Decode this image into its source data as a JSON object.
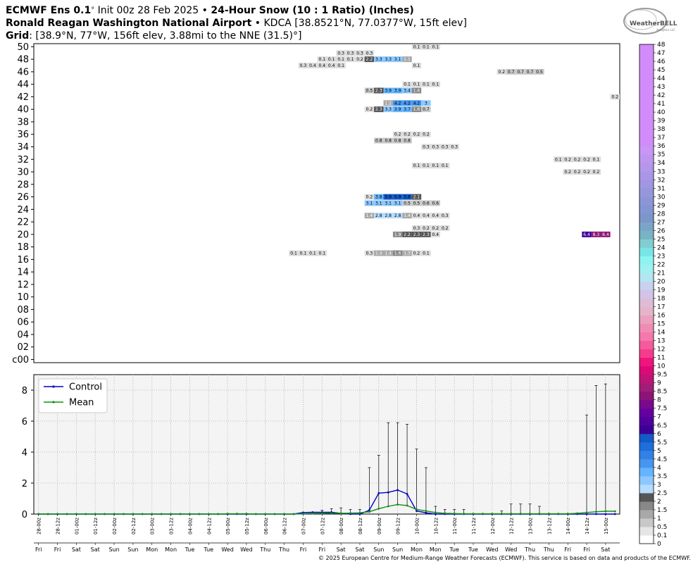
{
  "header": {
    "line1_model": "ECMWF Ens 0.1",
    "line1_deg": "°",
    "line1_init": "Init 00z 28 Feb 2025",
    "line1_sep": "•",
    "line1_product": "24-Hour Snow (10 : 1 Ratio) (Inches)",
    "line2_station": "Ronald Reagan Washington National Airport",
    "line2_sep": "•",
    "line2_code": "KDCA [38.8521°N, 77.0377°W, 15ft elev]",
    "line3_label": "Grid",
    "line3_value": ": [38.9°N, 77°W, 156ft elev, 3.88mi to the NNE (31.5)°]"
  },
  "logo": {
    "text": "WeatherBELL",
    "subtext": "Analytics LLC"
  },
  "credit": "© 2025 European Centre for Medium-Range Weather Forecasts (ECMWF). This service is based on data and products of the ECMWF.",
  "chart_data": [
    {
      "type": "heatmap",
      "title": "24-Hour Snow (10 : 1 Ratio) (Inches)",
      "y_members": [
        "c00",
        "02",
        "04",
        "06",
        "08",
        "10",
        "12",
        "14",
        "16",
        "18",
        "20",
        "22",
        "24",
        "26",
        "28",
        "30",
        "32",
        "34",
        "36",
        "38",
        "40",
        "42",
        "44",
        "46",
        "48",
        "50"
      ],
      "x_times": [
        "28-00z",
        "28-12z",
        "01-00z",
        "01-12z",
        "02-00z",
        "02-12z",
        "03-00z",
        "03-12z",
        "04-00z",
        "04-12z",
        "05-00z",
        "05-12z",
        "06-00z",
        "06-12z",
        "07-00z",
        "07-12z",
        "08-00z",
        "08-12z",
        "09-00z",
        "09-12z",
        "10-00z",
        "10-12z",
        "11-00z",
        "11-12z",
        "12-00z",
        "12-12z",
        "13-00z",
        "13-12z",
        "14-00z",
        "14-12z",
        "15-00z"
      ],
      "x_days": [
        "Fri",
        "Fri",
        "Sat",
        "Sat",
        "Sun",
        "Sun",
        "Mon",
        "Mon",
        "Tue",
        "Tue",
        "Wed",
        "Wed",
        "Thu",
        "Thu",
        "Fri",
        "Fri",
        "Sat",
        "Sat",
        "Sun",
        "Sun",
        "Mon",
        "Mon",
        "Tue",
        "Tue",
        "Wed",
        "Wed",
        "Thu",
        "Thu",
        "Fri",
        "Fri",
        "Sat"
      ],
      "cells": [
        {
          "member": 50,
          "start": 40.0,
          "values": [
            0.1,
            0.1,
            0.1
          ]
        },
        {
          "member": 49,
          "start": 32.0,
          "values": [
            0.3,
            0.3,
            0.3,
            0.3
          ]
        },
        {
          "member": 48,
          "start": 30.0,
          "values": [
            0.1,
            0.1,
            0.1,
            0.1,
            0.2,
            2.2,
            3.3,
            3.3,
            3.1,
            1.1
          ]
        },
        {
          "member": 47,
          "start": 28.0,
          "values": [
            0.3,
            0.4,
            0.4,
            0.4,
            0.1
          ]
        },
        {
          "member": 47,
          "start": 40.0,
          "values": [
            0.1
          ]
        },
        {
          "member": 46,
          "start": 49.0,
          "values": [
            0.2,
            0.7,
            0.7,
            0.7,
            0.5
          ]
        },
        {
          "member": 44,
          "start": 39.0,
          "values": [
            0.1,
            0.1,
            0.1,
            0.1
          ]
        },
        {
          "member": 43,
          "start": 35.0,
          "values": [
            0.5,
            2.3,
            3.9,
            3.9,
            3.4,
            1.6
          ]
        },
        {
          "member": 42,
          "start": 61.0,
          "values": [
            0.2
          ]
        },
        {
          "member": 41,
          "start": 37.0,
          "values": [
            1.2,
            4.2,
            4.2,
            4.2,
            3.0
          ]
        },
        {
          "member": 40,
          "start": 35.0,
          "values": [
            0.2,
            2.3,
            3.3,
            3.9,
            3.7,
            1.6,
            0.7
          ]
        },
        {
          "member": 36,
          "start": 38.0,
          "values": [
            0.2,
            0.2,
            0.2,
            0.2
          ]
        },
        {
          "member": 35,
          "start": 36.0,
          "values": [
            0.8,
            0.8,
            0.8,
            0.8
          ]
        },
        {
          "member": 34,
          "start": 41.0,
          "values": [
            0.3,
            0.3,
            0.3,
            0.3
          ]
        },
        {
          "member": 32,
          "start": 55.0,
          "values": [
            0.1,
            0.2,
            0.2,
            0.2,
            0.1
          ]
        },
        {
          "member": 31,
          "start": 40.0,
          "values": [
            0.1,
            0.1,
            0.1,
            0.1
          ]
        },
        {
          "member": 30,
          "start": 56.0,
          "values": [
            0.2,
            0.2,
            0.2,
            0.2
          ]
        },
        {
          "member": 26,
          "start": 35.0,
          "values": [
            0.2,
            3.8,
            5.9,
            5.9,
            5.8,
            2.1
          ]
        },
        {
          "member": 25,
          "start": 35.0,
          "values": [
            3.1,
            3.1,
            3.1,
            3.1,
            0.5,
            0.5,
            0.6,
            0.6
          ]
        },
        {
          "member": 23,
          "start": 35.0,
          "values": [
            1.4,
            2.8,
            2.8,
            2.8,
            1.4
          ]
        },
        {
          "member": 23,
          "start": 40.0,
          "values": [
            0.4,
            0.4,
            0.4,
            0.3
          ]
        },
        {
          "member": 21,
          "start": 40.0,
          "values": [
            0.3,
            0.2,
            0.2,
            0.2
          ]
        },
        {
          "member": 20,
          "start": 38.0,
          "values": [
            1.9,
            2.2,
            2.3,
            2.3,
            0.4
          ]
        },
        {
          "member": 20,
          "start": 58.0,
          "values": [
            6.4,
            8.3,
            8.4
          ]
        },
        {
          "member": 17,
          "start": 27.0,
          "values": [
            0.1,
            0.1,
            0.1,
            0.1
          ]
        },
        {
          "member": 17,
          "start": 35.0,
          "values": [
            0.3,
            1.4,
            1.4,
            1.6,
            1.3,
            0.2,
            0.1
          ]
        }
      ]
    },
    {
      "type": "line",
      "ylim": [
        0,
        9
      ],
      "yticks": [
        0,
        2,
        4,
        6,
        8
      ],
      "grid": true,
      "legend_position": "top-left",
      "series": [
        {
          "name": "Control",
          "color": "#0000c8",
          "values": [
            0,
            0,
            0,
            0,
            0,
            0,
            0,
            0,
            0,
            0,
            0,
            0,
            0,
            0,
            0,
            0,
            0,
            0,
            0,
            0,
            0,
            0,
            0,
            0,
            0,
            0,
            0,
            0,
            0.1,
            0.12,
            0.12,
            0.12,
            0.05,
            0,
            0,
            0.25,
            1.35,
            1.4,
            1.55,
            1.3,
            0.2,
            0.08,
            0,
            0,
            0,
            0,
            0,
            0,
            0,
            0,
            0,
            0,
            0,
            0,
            0,
            0,
            0,
            0,
            0,
            0,
            0,
            0
          ]
        },
        {
          "name": "Mean",
          "color": "#109010",
          "values": [
            0,
            0,
            0,
            0,
            0,
            0,
            0,
            0,
            0,
            0,
            0,
            0,
            0,
            0,
            0,
            0,
            0,
            0,
            0,
            0,
            0.02,
            0.02,
            0.02,
            0,
            0,
            0,
            0,
            0,
            0.02,
            0.04,
            0.05,
            0.06,
            0.05,
            0.06,
            0.08,
            0.15,
            0.35,
            0.5,
            0.62,
            0.55,
            0.3,
            0.2,
            0.1,
            0.05,
            0.03,
            0.02,
            0.02,
            0.02,
            0.02,
            0.02,
            0.02,
            0.02,
            0.02,
            0.02,
            0.02,
            0.02,
            0.02,
            0.05,
            0.1,
            0.15,
            0.18,
            0.18
          ]
        }
      ],
      "error_max": [
        0,
        0,
        0,
        0,
        0,
        0,
        0,
        0,
        0,
        0,
        0,
        0,
        0,
        0,
        0,
        0,
        0,
        0,
        0,
        0,
        0.05,
        0.05,
        0.05,
        0,
        0,
        0,
        0,
        0,
        0.1,
        0.12,
        0.25,
        0.35,
        0.4,
        0.3,
        0.3,
        3.0,
        3.8,
        5.9,
        5.9,
        5.8,
        4.2,
        3.0,
        0.5,
        0.3,
        0.3,
        0.3,
        0,
        0,
        0,
        0.2,
        0.65,
        0.65,
        0.65,
        0.5,
        0,
        0.1,
        0.1,
        0.15,
        6.4,
        8.3,
        8.4,
        0
      ]
    }
  ],
  "colorbar": {
    "labels": [
      "0",
      "0.1",
      "0.5",
      "1",
      "1.5",
      "2",
      "2.5",
      "3",
      "3.5",
      "4",
      "4.5",
      "5",
      "5.5",
      "6",
      "6.5",
      "7",
      "7.5",
      "8",
      "8.5",
      "9",
      "9.5",
      "10",
      "11",
      "12",
      "13",
      "14",
      "15",
      "16",
      "17",
      "18",
      "19",
      "20",
      "21",
      "22",
      "23",
      "24",
      "25",
      "26",
      "27",
      "28",
      "29",
      "30",
      "31",
      "32",
      "33",
      "34",
      "35",
      "36",
      "37",
      "38",
      "39",
      "40",
      "41",
      "42",
      "43",
      "44",
      "45",
      "46",
      "47",
      "48"
    ],
    "colors": [
      "#ffffff",
      "#e6e6e6",
      "#c8c8c8",
      "#a8a8a8",
      "#888888",
      "#555555",
      "#b4dcff",
      "#8cc8ff",
      "#64b4ff",
      "#4696f0",
      "#3282e6",
      "#1e6edc",
      "#145ac8",
      "#3c0096",
      "#50009c",
      "#6400a0",
      "#7a0a8c",
      "#8c1478",
      "#a01e78",
      "#be1478",
      "#dc0a78",
      "#f0147d",
      "#f53c8c",
      "#f55a9b",
      "#f578aa",
      "#f08cb4",
      "#eba0be",
      "#e6b4c8",
      "#ddbcd8",
      "#d2c4e6",
      "#c8d2f0",
      "#b4e6f0",
      "#a0f0f0",
      "#8cf5f0",
      "#78e6e6",
      "#82cdd2",
      "#78b4c3",
      "#7aa5c8",
      "#7c96c8",
      "#8296d2",
      "#8c96d7",
      "#9696dc",
      "#a096e1",
      "#aa96e6",
      "#b496eb",
      "#be96f0",
      "#c896f5",
      "#d28cfa",
      "#d28cfa"
    ]
  }
}
